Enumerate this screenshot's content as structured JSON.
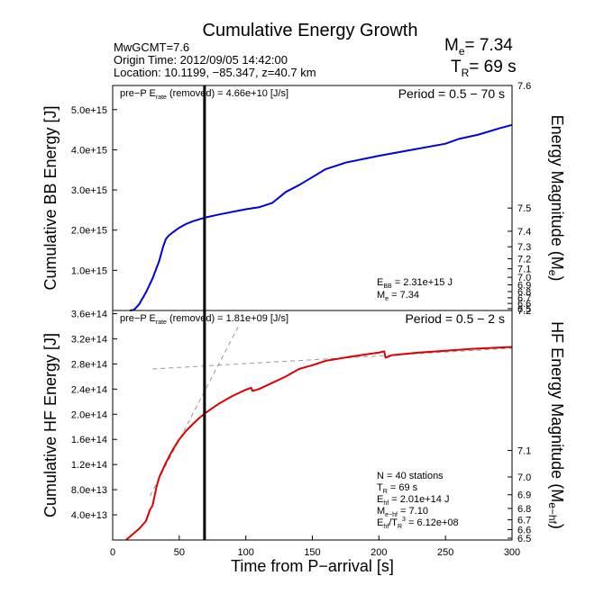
{
  "chart_data": [
    {
      "type": "line",
      "panel": "top",
      "title": "Cumulative Energy Growth",
      "info_lines": [
        "MwGCMT=7.6",
        "Origin Time: 2012/09/05 14:42:00",
        "Location: 10.1199, −85.347, z=40.7 km"
      ],
      "me_summary": {
        "label": "M",
        "sub": "e",
        "value": "= 7.34"
      },
      "tr_summary": {
        "label": "T",
        "sub": "R",
        "value": "= 69 s"
      },
      "ylabel": "Cumulative BB Energy [J]",
      "ylabel_right": {
        "main": "Energy Magnitude (M",
        "sub": "e",
        "close": ")"
      },
      "xlim": [
        0,
        300
      ],
      "ylim": [
        0,
        5600000000000000.0
      ],
      "yticks": [
        1000000000000000.0,
        2000000000000000.0,
        3000000000000000.0,
        4000000000000000.0,
        5000000000000000.0
      ],
      "ytick_labels": [
        "1.0e+15",
        "2.0e+15",
        "3.0e+15",
        "4.0e+15",
        "5.0e+15"
      ],
      "right_ticks": [
        "7.6",
        "7.5",
        "7.4",
        "7.3",
        "7.2",
        "7.1",
        "7.0",
        "6.9",
        "6.8",
        "6.7",
        "6.6",
        "6.5"
      ],
      "prep_note": {
        "pre": "pre−P E",
        "sub": "rate",
        "post": " (removed) = 4.66e+10 [J/s]"
      },
      "period": "Period = 0.5 − 70 s",
      "annotations": {
        "e_bb": {
          "pre": "E",
          "sub": "BB",
          "post": " = 2.31e+15 J"
        },
        "me": {
          "pre": "M",
          "sub": "e",
          "post": " = 7.34"
        }
      },
      "vline_x": 69,
      "series": [
        {
          "color": "#0000dd",
          "x": [
            13,
            16,
            20,
            25,
            30,
            35,
            38,
            40,
            42,
            45,
            50,
            55,
            60,
            69,
            80,
            100,
            110,
            120,
            130,
            140,
            150,
            160,
            175,
            200,
            225,
            250,
            260,
            275,
            290,
            300
          ],
          "y": [
            0,
            15000000000000.0,
            160000000000000.0,
            450000000000000.0,
            800000000000000.0,
            1240000000000000.0,
            1600000000000000.0,
            1780000000000000.0,
            1860000000000000.0,
            1940000000000000.0,
            2060000000000000.0,
            2150000000000000.0,
            2220000000000000.0,
            2310000000000000.0,
            2390000000000000.0,
            2520000000000000.0,
            2570000000000000.0,
            2680000000000000.0,
            2950000000000000.0,
            3120000000000000.0,
            3320000000000000.0,
            3520000000000000.0,
            3680000000000000.0,
            3850000000000000.0,
            4000000000000000.0,
            4150000000000000.0,
            4270000000000000.0,
            4380000000000000.0,
            4530000000000000.0,
            4620000000000000.0
          ]
        }
      ]
    },
    {
      "type": "line",
      "panel": "bottom",
      "xlabel": "Time from P−arrival [s]",
      "ylabel": "Cumulative HF Energy [J]",
      "ylabel_right": {
        "main": "HF Energy Magnitude (M",
        "sub": "e−hf",
        "close": ")"
      },
      "xlim": [
        0,
        300
      ],
      "xticks": [
        0,
        50,
        100,
        150,
        200,
        250,
        300
      ],
      "ylim": [
        0,
        365000000000000.0
      ],
      "yticks": [
        40000000000000.0,
        80000000000000.0,
        120000000000000.0,
        160000000000000.0,
        200000000000000.0,
        240000000000000.0,
        280000000000000.0,
        320000000000000.0,
        360000000000000.0
      ],
      "ytick_labels": [
        "4.0e+13",
        "8.0e+13",
        "1.2e+14",
        "1.6e+14",
        "2.0e+14",
        "2.4e+14",
        "2.8e+14",
        "3.2e+14",
        "3.6e+14"
      ],
      "right_ticks": [
        "7.2",
        "7.1",
        "7.0",
        "6.9",
        "6.8",
        "6.7",
        "6.6",
        "6.5"
      ],
      "prep_note": {
        "pre": "pre−P E",
        "sub": "rate",
        "post": " (removed) = 1.81e+09 [J/s]"
      },
      "period": "Period = 0.5 − 2 s",
      "stats": [
        {
          "pre": "N = 40 stations",
          "sub": "",
          "post": ""
        },
        {
          "pre": "T",
          "sub": "R",
          "post": " = 69  s"
        },
        {
          "pre": "E",
          "sub": "hf",
          "post": " = 2.01e+14 J"
        },
        {
          "pre": "M",
          "sub": "e−hf",
          "post": " = 7.10"
        },
        {
          "pre": "E",
          "sub": "hf",
          "post": "/T",
          "sub2": "R",
          "sup": "3",
          "post2": " =  6.12e+08"
        }
      ],
      "vline_x": 69,
      "fit_lines": [
        {
          "x": [
            28,
            95
          ],
          "y": [
            70000000000000.0,
            342000000000000.0
          ]
        },
        {
          "x": [
            30,
            300
          ],
          "y": [
            272000000000000.0,
            305000000000000.0
          ]
        }
      ],
      "series": [
        {
          "color": "#dd0000",
          "x": [
            10,
            20,
            25,
            28,
            30,
            33,
            35,
            40,
            45,
            50,
            55,
            60,
            65,
            69,
            75,
            80,
            90,
            100,
            104,
            105,
            110,
            120,
            130,
            140,
            150,
            160,
            180,
            200,
            204,
            205,
            210,
            230,
            250,
            270,
            300
          ],
          "y": [
            0,
            18000000000000.0,
            30000000000000.0,
            48000000000000.0,
            55000000000000.0,
            85000000000000.0,
            100000000000000.0,
            123000000000000.0,
            143000000000000.0,
            160000000000000.0,
            173000000000000.0,
            184000000000000.0,
            194000000000000.0,
            201000000000000.0,
            210000000000000.0,
            217000000000000.0,
            229000000000000.0,
            239000000000000.0,
            242000000000000.0,
            237000000000000.0,
            240000000000000.0,
            250000000000000.0,
            260000000000000.0,
            272000000000000.0,
            278000000000000.0,
            285000000000000.0,
            292000000000000.0,
            298000000000000.0,
            300000000000000.0,
            290000000000000.0,
            294000000000000.0,
            298000000000000.0,
            301000000000000.0,
            304000000000000.0,
            307000000000000.0
          ]
        }
      ]
    }
  ]
}
